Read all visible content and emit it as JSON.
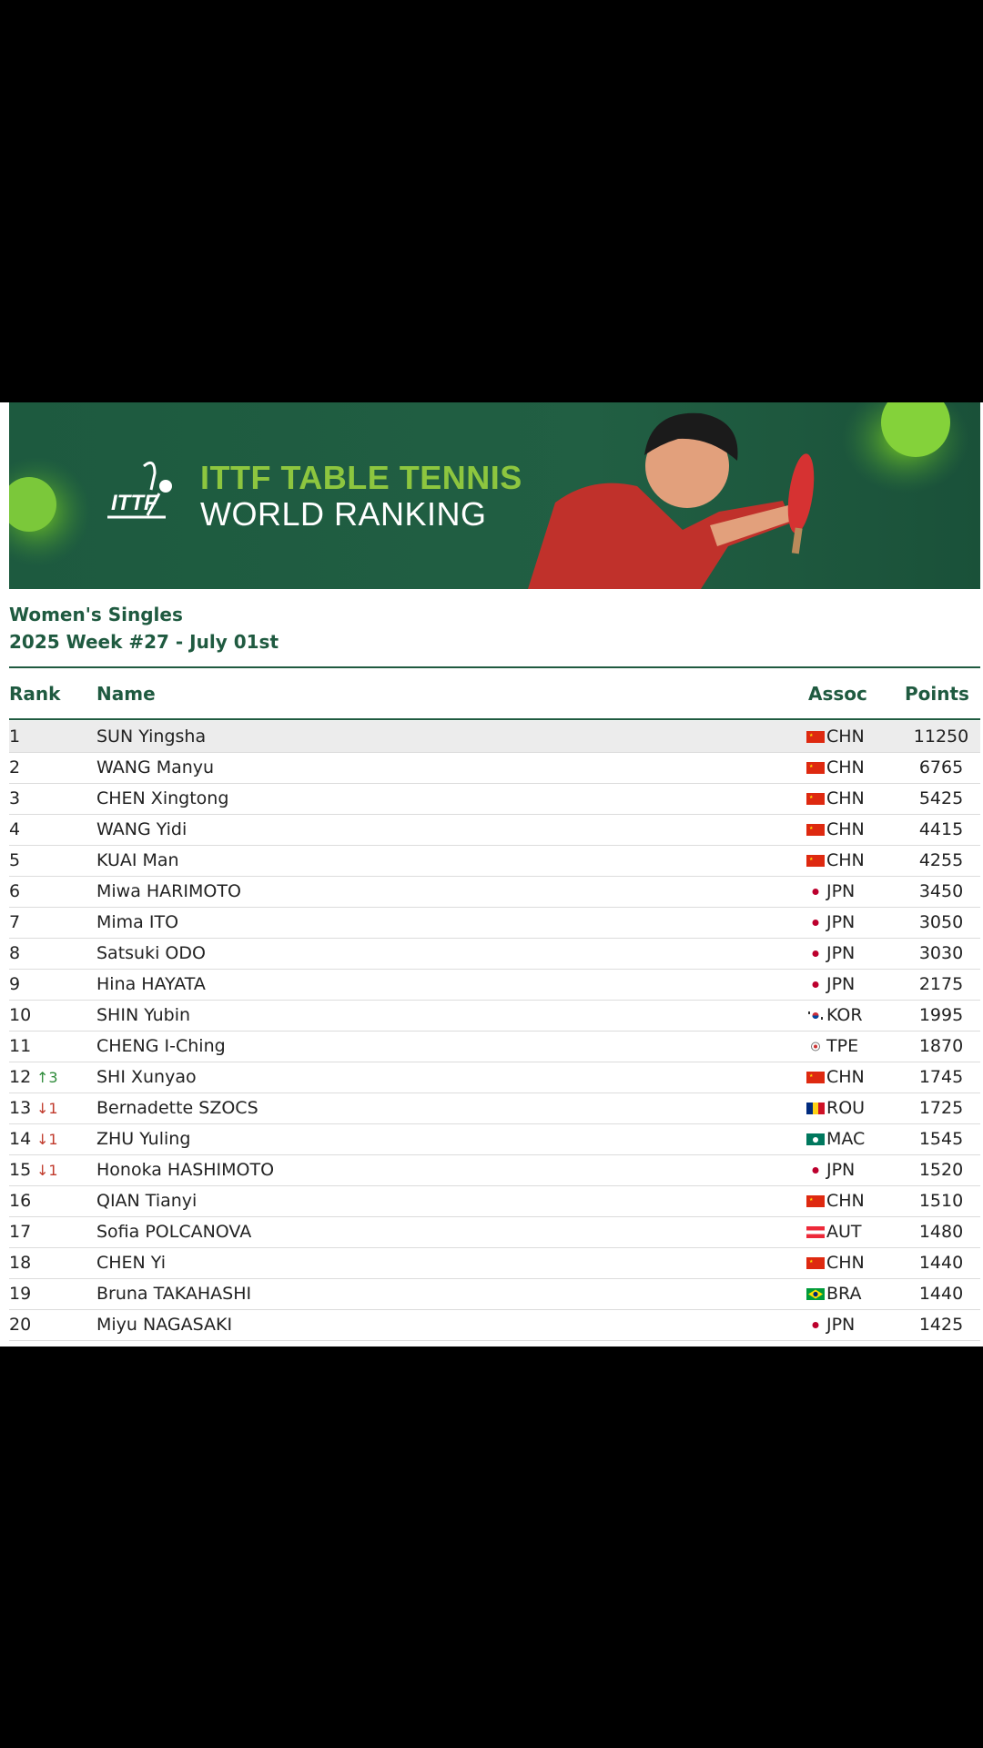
{
  "banner": {
    "title_line1": "ITTF TABLE TENNIS",
    "title_line2": "WORLD RANKING",
    "logo_text": "ITTF",
    "accent_color": "#8dc63f",
    "bg_color": "#1f5a40"
  },
  "heading": {
    "category": "Women's Singles",
    "week": "2025 Week #27 - July 01st"
  },
  "columns": {
    "rank": "Rank",
    "name": "Name",
    "assoc": "Assoc",
    "points": "Points"
  },
  "rows": [
    {
      "rank": "1",
      "move": "",
      "dir": "",
      "name": "SUN Yingsha",
      "assoc": "CHN",
      "flag": "china-flag",
      "points": "11250"
    },
    {
      "rank": "2",
      "move": "",
      "dir": "",
      "name": "WANG Manyu",
      "assoc": "CHN",
      "flag": "china-flag",
      "points": "6765"
    },
    {
      "rank": "3",
      "move": "",
      "dir": "",
      "name": "CHEN Xingtong",
      "assoc": "CHN",
      "flag": "china-flag",
      "points": "5425"
    },
    {
      "rank": "4",
      "move": "",
      "dir": "",
      "name": "WANG Yidi",
      "assoc": "CHN",
      "flag": "china-flag",
      "points": "4415"
    },
    {
      "rank": "5",
      "move": "",
      "dir": "",
      "name": "KUAI Man",
      "assoc": "CHN",
      "flag": "china-flag",
      "points": "4255"
    },
    {
      "rank": "6",
      "move": "",
      "dir": "",
      "name": "Miwa HARIMOTO",
      "assoc": "JPN",
      "flag": "japan-flag",
      "points": "3450"
    },
    {
      "rank": "7",
      "move": "",
      "dir": "",
      "name": "Mima ITO",
      "assoc": "JPN",
      "flag": "japan-flag",
      "points": "3050"
    },
    {
      "rank": "8",
      "move": "",
      "dir": "",
      "name": "Satsuki ODO",
      "assoc": "JPN",
      "flag": "japan-flag",
      "points": "3030"
    },
    {
      "rank": "9",
      "move": "",
      "dir": "",
      "name": "Hina HAYATA",
      "assoc": "JPN",
      "flag": "japan-flag",
      "points": "2175"
    },
    {
      "rank": "10",
      "move": "",
      "dir": "",
      "name": "SHIN Yubin",
      "assoc": "KOR",
      "flag": "korea-flag",
      "points": "1995"
    },
    {
      "rank": "11",
      "move": "",
      "dir": "",
      "name": "CHENG I-Ching",
      "assoc": "TPE",
      "flag": "tpe-flag",
      "points": "1870"
    },
    {
      "rank": "12",
      "move": "↑3",
      "dir": "up",
      "name": "SHI Xunyao",
      "assoc": "CHN",
      "flag": "china-flag",
      "points": "1745"
    },
    {
      "rank": "13",
      "move": "↓1",
      "dir": "down",
      "name": "Bernadette SZOCS",
      "assoc": "ROU",
      "flag": "romania-flag",
      "points": "1725"
    },
    {
      "rank": "14",
      "move": "↓1",
      "dir": "down",
      "name": "ZHU Yuling",
      "assoc": "MAC",
      "flag": "macau-flag",
      "points": "1545"
    },
    {
      "rank": "15",
      "move": "↓1",
      "dir": "down",
      "name": "Honoka HASHIMOTO",
      "assoc": "JPN",
      "flag": "japan-flag",
      "points": "1520"
    },
    {
      "rank": "16",
      "move": "",
      "dir": "",
      "name": "QIAN Tianyi",
      "assoc": "CHN",
      "flag": "china-flag",
      "points": "1510"
    },
    {
      "rank": "17",
      "move": "",
      "dir": "",
      "name": "Sofia POLCANOVA",
      "assoc": "AUT",
      "flag": "austria-flag",
      "points": "1480"
    },
    {
      "rank": "18",
      "move": "",
      "dir": "",
      "name": "CHEN Yi",
      "assoc": "CHN",
      "flag": "china-flag",
      "points": "1440"
    },
    {
      "rank": "19",
      "move": "",
      "dir": "",
      "name": "Bruna TAKAHASHI",
      "assoc": "BRA",
      "flag": "brazil-flag",
      "points": "1440"
    },
    {
      "rank": "20",
      "move": "",
      "dir": "",
      "name": "Miyu NAGASAKI",
      "assoc": "JPN",
      "flag": "japan-flag",
      "points": "1425"
    }
  ]
}
